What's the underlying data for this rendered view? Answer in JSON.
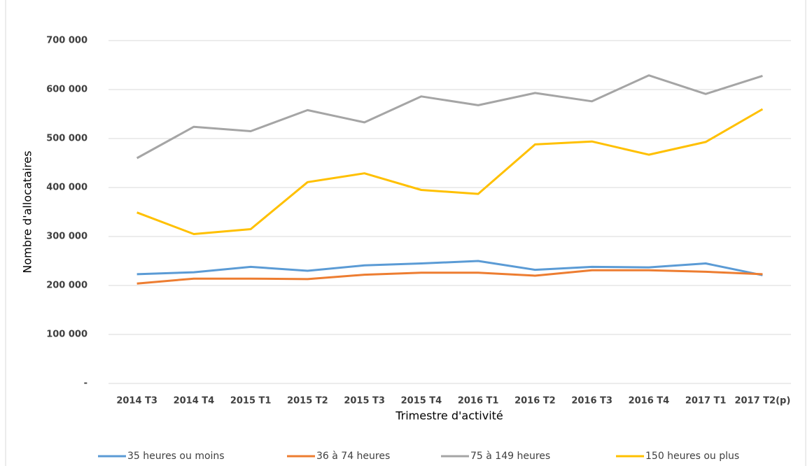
{
  "chart_data": {
    "type": "line",
    "y_label": "Nombre d'allocataires",
    "x_label": "Trimestre d'activité",
    "categories": [
      "2014 T3",
      "2014 T4",
      "2015 T1",
      "2015 T2",
      "2015 T3",
      "2015 T4",
      "2016 T1",
      "2016 T2",
      "2016 T3",
      "2016 T4",
      "2017 T1",
      "2017 T2(p)"
    ],
    "series": [
      {
        "name": "35 heures ou moins",
        "color": "#5b9bd5",
        "values": [
          223000,
          227000,
          238000,
          230000,
          241000,
          245000,
          250000,
          232000,
          238000,
          237000,
          245000,
          221000
        ]
      },
      {
        "name": "36 à 74 heures",
        "color": "#ed7d31",
        "values": [
          204000,
          214000,
          214000,
          213000,
          222000,
          226000,
          226000,
          220000,
          231000,
          231000,
          228000,
          223000
        ]
      },
      {
        "name": "75 à 149 heures",
        "color": "#a5a5a5",
        "values": [
          460000,
          524000,
          515000,
          558000,
          533000,
          586000,
          568000,
          593000,
          576000,
          629000,
          591000,
          628000
        ]
      },
      {
        "name": "150 heures ou plus",
        "color": "#ffc000",
        "values": [
          349000,
          305000,
          315000,
          411000,
          429000,
          395000,
          387000,
          488000,
          494000,
          467000,
          493000,
          560000
        ]
      }
    ],
    "ylim": [
      0,
      700000
    ],
    "yticks": [
      {
        "value": 0,
        "label": "-"
      },
      {
        "value": 100000,
        "label": "100 000"
      },
      {
        "value": 200000,
        "label": "200 000"
      },
      {
        "value": 300000,
        "label": "300 000"
      },
      {
        "value": 400000,
        "label": "400 000"
      },
      {
        "value": 500000,
        "label": "500 000"
      },
      {
        "value": 600000,
        "label": "600 000"
      },
      {
        "value": 700000,
        "label": "700 000"
      }
    ],
    "grid": true,
    "legend": "bottom"
  }
}
